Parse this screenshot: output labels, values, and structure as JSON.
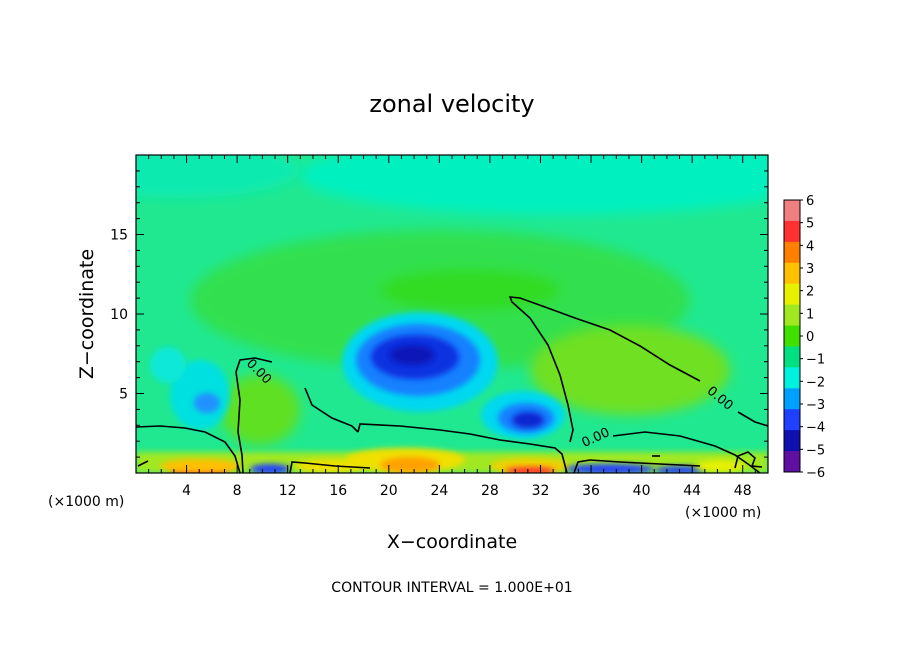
{
  "chart_data": {
    "type": "heatmap",
    "title": "zonal velocity",
    "xlabel": "X−coordinate",
    "ylabel": "Z−coordinate",
    "xunit": "(×1000 m)",
    "xunit_right": "(×1000 m)",
    "footnote": "CONTOUR INTERVAL = 1.000E+01",
    "xlim": [
      0,
      50
    ],
    "ylim": [
      0,
      20
    ],
    "x_ticks": [
      4,
      8,
      12,
      16,
      20,
      24,
      28,
      32,
      36,
      40,
      44,
      48
    ],
    "y_ticks": [
      5,
      10,
      15
    ],
    "grid": false,
    "colorbar": {
      "range": [
        -6,
        6
      ],
      "tick_labels": [
        "6",
        "5",
        "4",
        "3",
        "2",
        "1",
        "0",
        "−1",
        "−2",
        "−3",
        "−4",
        "−5",
        "−6"
      ],
      "colors": [
        "#f08080",
        "#ff3030",
        "#ff8000",
        "#ffc000",
        "#e8f000",
        "#a0e820",
        "#40e000",
        "#00e080",
        "#00f0e0",
        "#00a0ff",
        "#2040ff",
        "#1010b0",
        "#6010a0"
      ]
    },
    "contour_labels": [
      {
        "text": "0.00",
        "x": 9.5,
        "z": 6.2
      },
      {
        "text": "0.00",
        "x": 36.5,
        "z": 2.0
      },
      {
        "text": "0.00",
        "x": 46,
        "z": 4.5
      }
    ],
    "features": [
      {
        "kind": "min",
        "x": 22.5,
        "z": 7.2,
        "value": -4.5
      },
      {
        "kind": "min",
        "x": 31.5,
        "z": 3.5,
        "value": -4.0
      },
      {
        "kind": "min",
        "x": 5.5,
        "z": 4.4,
        "value": -2.5
      },
      {
        "kind": "max",
        "x": 21,
        "z": 0.6,
        "value": 3.5
      },
      {
        "kind": "max",
        "x": 5,
        "z": 0.3,
        "value": 4.0
      },
      {
        "kind": "max",
        "x": 30,
        "z": 0.3,
        "value": 4.0
      },
      {
        "kind": "min",
        "x": 11,
        "z": 0.3,
        "value": -4.0
      },
      {
        "kind": "min",
        "x": 38,
        "z": 0.3,
        "value": -4.0
      },
      {
        "kind": "min",
        "x": 42,
        "z": 0.3,
        "value": -3.5
      },
      {
        "kind": "max",
        "x": 38,
        "z": 5.5,
        "value": 1.0
      },
      {
        "kind": "min",
        "x": 44,
        "z": 17.5,
        "value": -1.5
      },
      {
        "kind": "min",
        "x": 5,
        "z": 18,
        "value": -1.2
      }
    ]
  }
}
